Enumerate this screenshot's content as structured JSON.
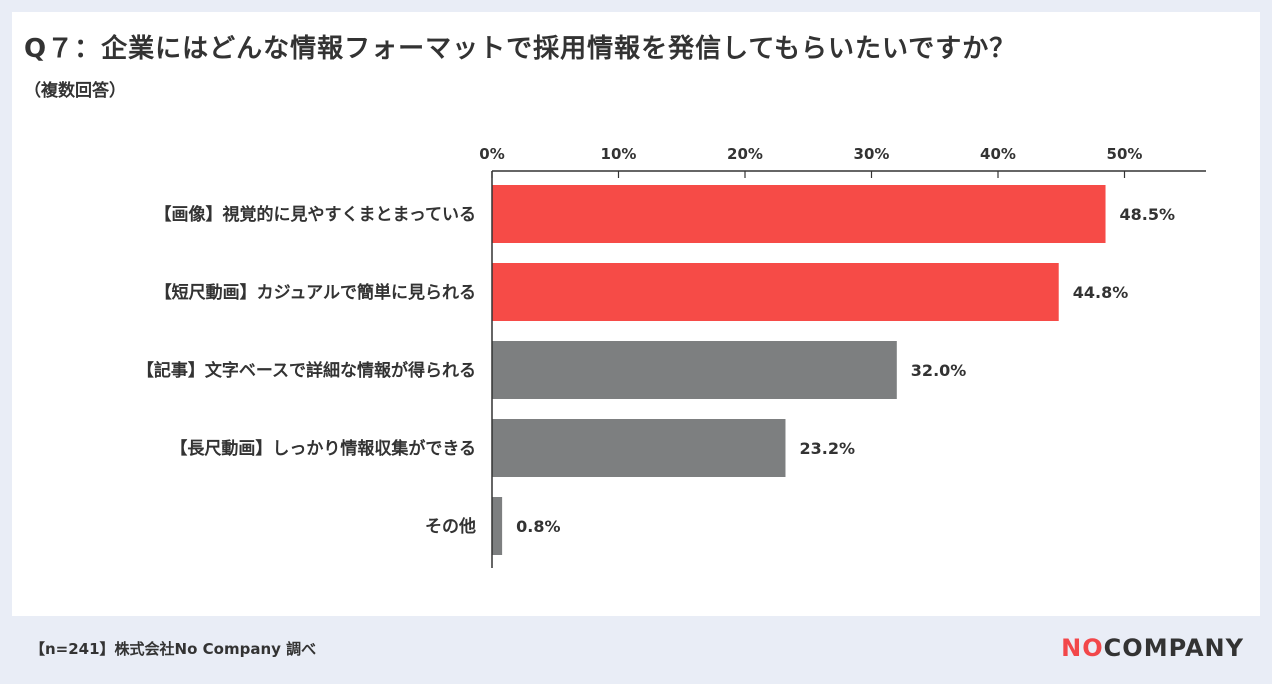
{
  "title": "Q７：企業にはどんな情報フォーマットで採用情報を発信してもらいたいですか？",
  "subtitle": "（複数回答）",
  "footer": "【n=241】株式会社No Company 調べ",
  "logo": {
    "part1": "NO",
    "part2": "COMPANY"
  },
  "colors": {
    "highlight": "#f64b47",
    "other": "#7d7f80",
    "axis": "#333333",
    "background": "#e9edf6"
  },
  "chart_data": {
    "type": "bar",
    "orientation": "horizontal",
    "categories": [
      "【画像】視覚的に見やすくまとまっている",
      "【短尺動画】カジュアルで簡単に見られる",
      "【記事】文字ベースで詳細な情報が得られる",
      "【長尺動画】しっかり情報収集ができる",
      "その他"
    ],
    "values": [
      48.5,
      44.8,
      32.0,
      23.2,
      0.8
    ],
    "value_labels": [
      "48.5%",
      "44.8%",
      "32.0%",
      "23.2%",
      "0.8%"
    ],
    "highlighted": [
      true,
      true,
      false,
      false,
      false
    ],
    "xlim": [
      0,
      56
    ],
    "xticks": [
      0,
      10,
      20,
      30,
      40,
      50
    ],
    "xtick_labels": [
      "0%",
      "10%",
      "20%",
      "30%",
      "40%",
      "50%"
    ],
    "axis_position": "top",
    "grid": false,
    "legend": "none"
  }
}
